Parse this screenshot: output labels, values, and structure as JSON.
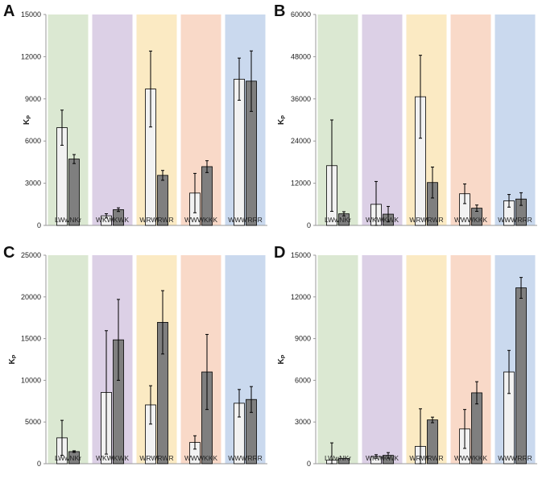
{
  "chart_data": [
    {
      "panel": "A",
      "type": "bar",
      "ylabel": "K",
      "ylabel_sub": "P",
      "ylim": [
        0,
        15000
      ],
      "yticks": [
        0,
        3000,
        6000,
        9000,
        12000,
        15000
      ],
      "ytick_labels": [
        "0",
        "3000",
        "6000",
        "9000",
        "12000",
        "15000"
      ],
      "categories": [
        "LWwNKr",
        "WKWKWK",
        "WRWRWR",
        "WWWKKK",
        "WWWRRR"
      ],
      "series": [
        {
          "name": "light",
          "values": [
            6950,
            680,
            9700,
            2300,
            10400
          ],
          "errors": [
            1250,
            150,
            2700,
            1400,
            1500
          ]
        },
        {
          "name": "dark",
          "values": [
            4720,
            1120,
            3560,
            4180,
            10260
          ],
          "errors": [
            320,
            130,
            350,
            420,
            2150
          ]
        }
      ]
    },
    {
      "panel": "B",
      "type": "bar",
      "ylabel": "K",
      "ylabel_sub": "P",
      "ylim": [
        0,
        60000
      ],
      "yticks": [
        0,
        12000,
        24000,
        36000,
        48000,
        60000
      ],
      "ytick_labels": [
        "0",
        "12000",
        "24000",
        "36000",
        "48000",
        "60000"
      ],
      "categories": [
        "LWwNKr",
        "WKWKWK",
        "WRWRWR",
        "WWWKKK",
        "WWWRRR"
      ],
      "series": [
        {
          "name": "light",
          "values": [
            17000,
            6000,
            36600,
            9000,
            7000
          ],
          "errors": [
            13000,
            6500,
            11800,
            2800,
            1800
          ]
        },
        {
          "name": "dark",
          "values": [
            3300,
            3200,
            12200,
            4900,
            7500
          ],
          "errors": [
            600,
            2200,
            4400,
            900,
            1800
          ]
        }
      ]
    },
    {
      "panel": "C",
      "type": "bar",
      "ylabel": "K",
      "ylabel_sub": "P",
      "ylim": [
        0,
        25000
      ],
      "yticks": [
        0,
        5000,
        10000,
        15000,
        20000,
        25000
      ],
      "ytick_labels": [
        "0",
        "5000",
        "10000",
        "15000",
        "20000",
        "25000"
      ],
      "categories": [
        "LWwNKr",
        "WKWKWK",
        "WRWRWR",
        "WWWKKK",
        "WWWRRR"
      ],
      "series": [
        {
          "name": "light",
          "values": [
            3100,
            8550,
            7050,
            2550,
            7250
          ],
          "errors": [
            2100,
            7400,
            2300,
            800,
            1650
          ]
        },
        {
          "name": "dark",
          "values": [
            1450,
            14850,
            16950,
            11000,
            7700
          ],
          "errors": [
            100,
            4850,
            3800,
            4500,
            1550
          ]
        }
      ]
    },
    {
      "panel": "D",
      "type": "bar",
      "ylabel": "K",
      "ylabel_sub": "P",
      "ylim": [
        0,
        15000
      ],
      "yticks": [
        0,
        3000,
        6000,
        9000,
        12000,
        15000
      ],
      "ytick_labels": [
        "0",
        "3000",
        "6000",
        "9000",
        "12000",
        "15000"
      ],
      "categories": [
        "LWwNKr",
        "WKWKWK",
        "WRWRWR",
        "WWWKKK",
        "WWWRRR"
      ],
      "series": [
        {
          "name": "light",
          "values": [
            250,
            520,
            1250,
            2500,
            6600
          ],
          "errors": [
            1250,
            130,
            2700,
            1400,
            1550
          ]
        },
        {
          "name": "dark",
          "values": [
            380,
            600,
            3150,
            5100,
            12650
          ],
          "errors": [
            0,
            200,
            200,
            800,
            750
          ]
        }
      ]
    }
  ],
  "colors": {
    "bands": [
      "#dbe8d2",
      "#dcd0e6",
      "#fbeac3",
      "#f9d9c8",
      "#cad9ee"
    ],
    "light_bar": "#f2f2f2",
    "dark_bar": "#7f7f7f",
    "bar_stroke": "#000000",
    "axis": "#999999"
  }
}
